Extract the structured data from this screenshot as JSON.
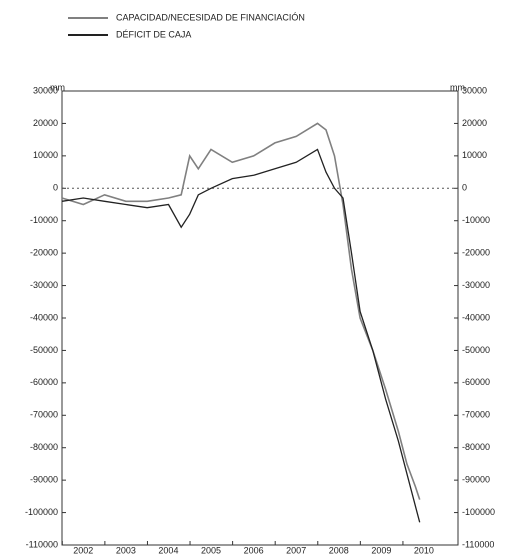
{
  "chart_data": {
    "type": "line",
    "legend": "top",
    "y_unit_label": "mm",
    "y2_unit_label": "mm",
    "x": [
      2002,
      2002.5,
      2003,
      2003.5,
      2004,
      2004.5,
      2004.8,
      2005,
      2005.2,
      2005.5,
      2006,
      2006.5,
      2007,
      2007.5,
      2008,
      2008.2,
      2008.4,
      2008.6,
      2008.8,
      2009,
      2009.3,
      2009.6,
      2009.9,
      2010.1,
      2010.3,
      2010.4
    ],
    "series": [
      {
        "name": "CAPACIDAD/NECESIDAD DE FINANCIACIÓN",
        "color": "#808080",
        "values": [
          -3000,
          -5000,
          -2000,
          -4000,
          -4000,
          -3000,
          -2000,
          10000,
          6000,
          12000,
          8000,
          10000,
          14000,
          16000,
          20000,
          18000,
          10000,
          -5000,
          -25000,
          -40000,
          -50000,
          -62000,
          -75000,
          -85000,
          -92000,
          -96000
        ]
      },
      {
        "name": "DÉFICIT DE CAJA",
        "color": "#222222",
        "values": [
          -4000,
          -3000,
          -4000,
          -5000,
          -6000,
          -5000,
          -12000,
          -8000,
          -2000,
          0,
          3000,
          4000,
          6000,
          8000,
          12000,
          5000,
          0,
          -3000,
          -20000,
          -38000,
          -50000,
          -65000,
          -78000,
          -88000,
          -98000,
          -103000
        ]
      }
    ],
    "xlim": [
      2002,
      2011.3
    ],
    "xticks": [
      {
        "value": 2002.5,
        "label": "2002"
      },
      {
        "value": 2003.5,
        "label": "2003"
      },
      {
        "value": 2004.5,
        "label": "2004"
      },
      {
        "value": 2005.5,
        "label": "2005"
      },
      {
        "value": 2006.5,
        "label": "2006"
      },
      {
        "value": 2007.5,
        "label": "2007"
      },
      {
        "value": 2008.5,
        "label": "2008"
      },
      {
        "value": 2009.5,
        "label": "2009"
      },
      {
        "value": 2010.5,
        "label": "2010"
      }
    ],
    "ylim": [
      -110000,
      30000
    ],
    "yticks": [
      30000,
      20000,
      10000,
      0,
      -10000,
      -20000,
      -30000,
      -40000,
      -50000,
      -60000,
      -70000,
      -80000,
      -90000,
      -100000,
      -110000
    ],
    "y2lim": [
      -110000,
      30000
    ],
    "y2ticks": [
      30000,
      20000,
      10000,
      0,
      -10000,
      -20000,
      -30000,
      -40000,
      -50000,
      -60000,
      -70000,
      -80000,
      -90000,
      -100000,
      -110000
    ],
    "zero_line": 0
  }
}
